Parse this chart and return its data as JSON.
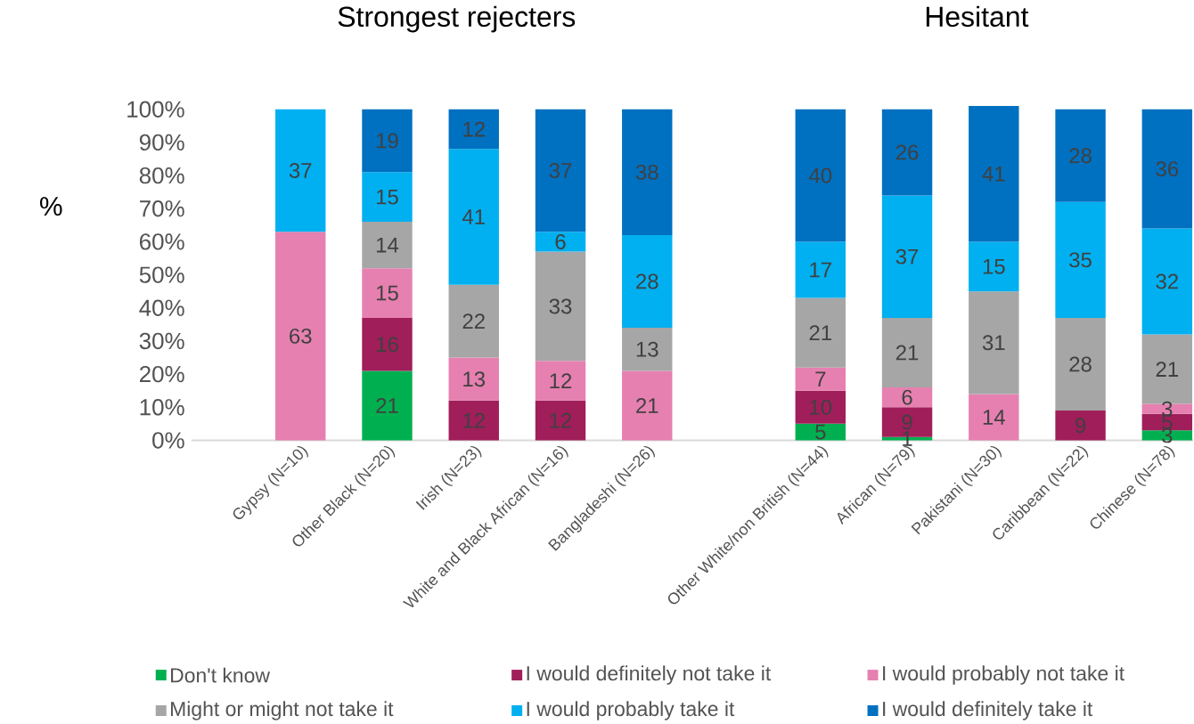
{
  "chart_data": {
    "type": "bar",
    "stacked": true,
    "ylabel": "%",
    "annotations": [
      "Strongest rejecters",
      "Hesitant"
    ],
    "categories": [
      "Gypsy (N=10)",
      "Other Black (N=20)",
      "Irish (N=23)",
      "White and Black African (N=16)",
      "Bangladeshi (N=26)",
      null,
      "Other White/non British (N=44)",
      "African (N=79)",
      "Pakistani (N=30)",
      "Caribbean (N=22)",
      "Chinese (N=78)"
    ],
    "series": [
      {
        "name": "Don't know",
        "color": "#00b050",
        "values": [
          null,
          21,
          null,
          null,
          null,
          null,
          5,
          1,
          null,
          null,
          3
        ]
      },
      {
        "name": "I would definitely not take it",
        "color": "#a01e5a",
        "values": [
          null,
          16,
          12,
          12,
          null,
          null,
          10,
          9,
          null,
          9,
          5
        ]
      },
      {
        "name": "I would probably not take it",
        "color": "#e680b0",
        "values": [
          63,
          15,
          13,
          12,
          21,
          null,
          7,
          6,
          14,
          null,
          3
        ]
      },
      {
        "name": "Might or might not take it",
        "color": "#a6a6a6",
        "values": [
          null,
          14,
          22,
          33,
          13,
          null,
          21,
          21,
          31,
          28,
          21
        ]
      },
      {
        "name": "I would probably take it",
        "color": "#00b0f0",
        "values": [
          37,
          15,
          41,
          6,
          28,
          null,
          17,
          37,
          15,
          35,
          32
        ]
      },
      {
        "name": "I would definitely take it",
        "color": "#0070c0",
        "values": [
          null,
          19,
          12,
          37,
          38,
          null,
          40,
          26,
          41,
          28,
          36
        ]
      }
    ],
    "ylim": [
      0,
      101
    ],
    "yticks": [
      {
        "value": 0,
        "label": "0%"
      },
      {
        "value": 10,
        "label": "10%"
      },
      {
        "value": 20,
        "label": "20%"
      },
      {
        "value": 30,
        "label": "30%"
      },
      {
        "value": 40,
        "label": "40%"
      },
      {
        "value": 50,
        "label": "50%"
      },
      {
        "value": 60,
        "label": "60%"
      },
      {
        "value": 70,
        "label": "70%"
      },
      {
        "value": 80,
        "label": "80%"
      },
      {
        "value": 90,
        "label": "90%"
      },
      {
        "value": 100,
        "label": "100%"
      }
    ],
    "grid": false,
    "legend": "bottom",
    "data_labels": true
  }
}
